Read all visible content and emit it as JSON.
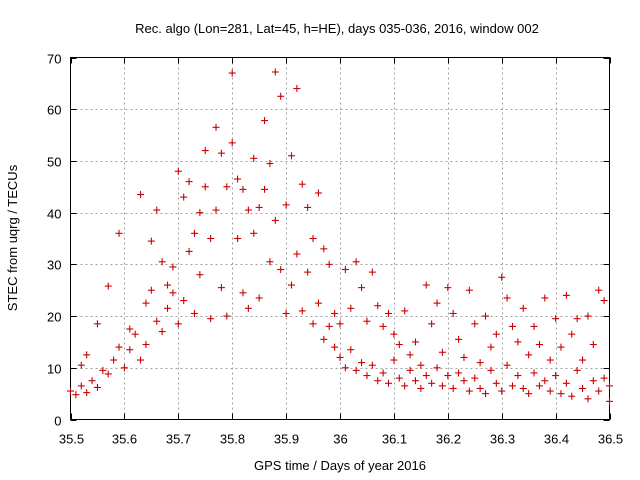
{
  "chart_data": {
    "type": "scatter",
    "title": "Rec. algo (Lon=281, Lat=45, h=HE), days 035-036, 2016, window 002",
    "xlabel": "GPS time / Days of year 2016",
    "ylabel": "STEC from uqrg / TECUs",
    "xlim": [
      35.5,
      36.5
    ],
    "ylim": [
      0,
      70
    ],
    "xticks": [
      35.5,
      35.6,
      35.7,
      35.8,
      35.9,
      36,
      36.1,
      36.2,
      36.3,
      36.4,
      36.5
    ],
    "xtick_labels": [
      "35.5",
      "35.6",
      "35.7",
      "35.8",
      "35.9",
      "36",
      "36.1",
      "36.2",
      "36.3",
      "36.4",
      "36.5"
    ],
    "yticks": [
      0,
      10,
      20,
      30,
      40,
      50,
      60,
      70
    ],
    "ytick_labels": [
      "0",
      "10",
      "20",
      "30",
      "40",
      "50",
      "60",
      "70"
    ],
    "grid": true,
    "marker": "+",
    "color": "#cc0000",
    "series": [
      {
        "name": "STEC",
        "points": [
          [
            35.5,
            5.5
          ],
          [
            35.51,
            4.8
          ],
          [
            35.52,
            6.5
          ],
          [
            35.52,
            10.5
          ],
          [
            35.53,
            12.5
          ],
          [
            35.53,
            5.2
          ],
          [
            35.54,
            7.5
          ],
          [
            35.55,
            18.5
          ],
          [
            35.55,
            6.2
          ],
          [
            35.56,
            9.5
          ],
          [
            35.57,
            25.8
          ],
          [
            35.57,
            8.8
          ],
          [
            35.58,
            11.5
          ],
          [
            35.59,
            36.0
          ],
          [
            35.59,
            14.0
          ],
          [
            35.6,
            10.0
          ],
          [
            35.61,
            13.5
          ],
          [
            35.61,
            17.5
          ],
          [
            35.62,
            16.5
          ],
          [
            35.63,
            43.5
          ],
          [
            35.63,
            11.5
          ],
          [
            35.64,
            22.5
          ],
          [
            35.64,
            14.5
          ],
          [
            35.65,
            34.5
          ],
          [
            35.65,
            25.0
          ],
          [
            35.66,
            40.5
          ],
          [
            35.66,
            19.0
          ],
          [
            35.67,
            30.5
          ],
          [
            35.67,
            17.0
          ],
          [
            35.68,
            26.0
          ],
          [
            35.68,
            21.5
          ],
          [
            35.69,
            29.5
          ],
          [
            35.69,
            24.5
          ],
          [
            35.7,
            48.0
          ],
          [
            35.7,
            18.5
          ],
          [
            35.71,
            43.0
          ],
          [
            35.71,
            23.0
          ],
          [
            35.72,
            46.0
          ],
          [
            35.72,
            32.5
          ],
          [
            35.73,
            36.0
          ],
          [
            35.73,
            20.5
          ],
          [
            35.74,
            40.0
          ],
          [
            35.74,
            28.0
          ],
          [
            35.75,
            52.0
          ],
          [
            35.75,
            45.0
          ],
          [
            35.76,
            35.0
          ],
          [
            35.76,
            19.5
          ],
          [
            35.77,
            56.5
          ],
          [
            35.77,
            40.5
          ],
          [
            35.78,
            51.5
          ],
          [
            35.78,
            25.5
          ],
          [
            35.79,
            45.0
          ],
          [
            35.79,
            20.0
          ],
          [
            35.8,
            67.0
          ],
          [
            35.8,
            53.5
          ],
          [
            35.81,
            46.5
          ],
          [
            35.81,
            35.0
          ],
          [
            35.82,
            44.5
          ],
          [
            35.82,
            24.5
          ],
          [
            35.83,
            40.5
          ],
          [
            35.83,
            21.5
          ],
          [
            35.84,
            50.5
          ],
          [
            35.84,
            36.0
          ],
          [
            35.85,
            41.0
          ],
          [
            35.85,
            23.5
          ],
          [
            35.86,
            57.8
          ],
          [
            35.86,
            44.5
          ],
          [
            35.87,
            49.5
          ],
          [
            35.87,
            30.5
          ],
          [
            35.88,
            67.2
          ],
          [
            35.88,
            38.5
          ],
          [
            35.89,
            62.5
          ],
          [
            35.89,
            29.0
          ],
          [
            35.9,
            41.5
          ],
          [
            35.9,
            20.5
          ],
          [
            35.91,
            51.0
          ],
          [
            35.91,
            26.0
          ],
          [
            35.92,
            64.0
          ],
          [
            35.92,
            32.0
          ],
          [
            35.93,
            45.5
          ],
          [
            35.93,
            21.0
          ],
          [
            35.94,
            41.0
          ],
          [
            35.94,
            28.5
          ],
          [
            35.95,
            35.0
          ],
          [
            35.95,
            18.5
          ],
          [
            35.96,
            43.8
          ],
          [
            35.96,
            22.5
          ],
          [
            35.97,
            33.0
          ],
          [
            35.97,
            15.5
          ],
          [
            35.98,
            30.0
          ],
          [
            35.98,
            18.0
          ],
          [
            35.99,
            20.5
          ],
          [
            35.99,
            14.0
          ],
          [
            36.0,
            18.5
          ],
          [
            36.0,
            12.0
          ],
          [
            36.01,
            29.0
          ],
          [
            36.01,
            10.0
          ],
          [
            36.02,
            21.5
          ],
          [
            36.02,
            13.5
          ],
          [
            36.03,
            30.5
          ],
          [
            36.03,
            9.5
          ],
          [
            36.04,
            25.5
          ],
          [
            36.04,
            11.0
          ],
          [
            36.05,
            19.0
          ],
          [
            36.05,
            8.5
          ],
          [
            36.06,
            28.5
          ],
          [
            36.06,
            10.5
          ],
          [
            36.07,
            22.0
          ],
          [
            36.07,
            7.5
          ],
          [
            36.08,
            18.0
          ],
          [
            36.08,
            9.0
          ],
          [
            36.09,
            20.5
          ],
          [
            36.09,
            7.0
          ],
          [
            36.1,
            16.5
          ],
          [
            36.1,
            11.5
          ],
          [
            36.11,
            14.5
          ],
          [
            36.11,
            8.0
          ],
          [
            36.12,
            21.0
          ],
          [
            36.12,
            6.5
          ],
          [
            36.13,
            12.5
          ],
          [
            36.13,
            9.5
          ],
          [
            36.14,
            15.0
          ],
          [
            36.14,
            7.5
          ],
          [
            36.15,
            10.5
          ],
          [
            36.15,
            6.0
          ],
          [
            36.16,
            26.0
          ],
          [
            36.16,
            8.5
          ],
          [
            36.17,
            18.5
          ],
          [
            36.17,
            7.0
          ],
          [
            36.18,
            22.5
          ],
          [
            36.18,
            10.0
          ],
          [
            36.19,
            13.0
          ],
          [
            36.19,
            6.5
          ],
          [
            36.2,
            25.5
          ],
          [
            36.2,
            8.5
          ],
          [
            36.21,
            20.5
          ],
          [
            36.21,
            6.0
          ],
          [
            36.22,
            15.5
          ],
          [
            36.22,
            9.0
          ],
          [
            36.23,
            12.0
          ],
          [
            36.23,
            7.5
          ],
          [
            36.24,
            25.0
          ],
          [
            36.24,
            5.5
          ],
          [
            36.25,
            18.5
          ],
          [
            36.25,
            8.0
          ],
          [
            36.26,
            11.0
          ],
          [
            36.26,
            6.0
          ],
          [
            36.27,
            20.0
          ],
          [
            36.27,
            5.0
          ],
          [
            36.28,
            14.0
          ],
          [
            36.28,
            9.5
          ],
          [
            36.29,
            16.5
          ],
          [
            36.29,
            7.0
          ],
          [
            36.3,
            27.5
          ],
          [
            36.3,
            5.5
          ],
          [
            36.31,
            23.5
          ],
          [
            36.31,
            10.5
          ],
          [
            36.32,
            18.0
          ],
          [
            36.32,
            6.5
          ],
          [
            36.33,
            15.0
          ],
          [
            36.33,
            8.5
          ],
          [
            36.34,
            21.5
          ],
          [
            36.34,
            6.0
          ],
          [
            36.35,
            12.5
          ],
          [
            36.35,
            5.0
          ],
          [
            36.36,
            18.0
          ],
          [
            36.36,
            9.0
          ],
          [
            36.37,
            14.5
          ],
          [
            36.37,
            6.5
          ],
          [
            36.38,
            23.5
          ],
          [
            36.38,
            7.5
          ],
          [
            36.39,
            11.5
          ],
          [
            36.39,
            5.5
          ],
          [
            36.4,
            19.5
          ],
          [
            36.4,
            8.5
          ],
          [
            36.41,
            14.0
          ],
          [
            36.41,
            5.0
          ],
          [
            36.42,
            24.0
          ],
          [
            36.42,
            7.0
          ],
          [
            36.43,
            16.5
          ],
          [
            36.43,
            4.5
          ],
          [
            36.44,
            19.5
          ],
          [
            36.44,
            9.5
          ],
          [
            36.45,
            11.5
          ],
          [
            36.45,
            6.0
          ],
          [
            36.46,
            20.0
          ],
          [
            36.46,
            4.0
          ],
          [
            36.47,
            14.5
          ],
          [
            36.47,
            7.5
          ],
          [
            36.48,
            25.0
          ],
          [
            36.48,
            5.5
          ],
          [
            36.49,
            23.0
          ],
          [
            36.49,
            8.0
          ],
          [
            36.5,
            6.5
          ],
          [
            36.5,
            3.5
          ]
        ]
      }
    ]
  }
}
